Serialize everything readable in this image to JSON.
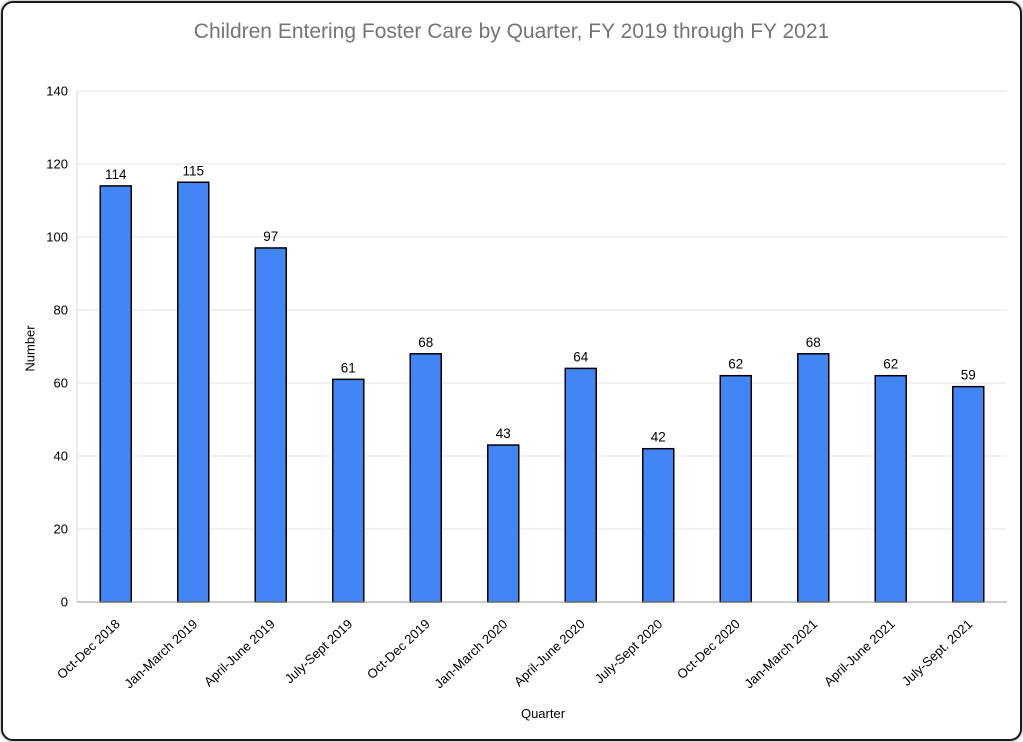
{
  "window": {
    "background": "#ffffff",
    "border_color": "#1c1c1c"
  },
  "chart_data": {
    "type": "bar",
    "title": "Children Entering Foster Care by Quarter, FY 2019 through FY 2021",
    "xlabel": "Quarter",
    "ylabel": "Number",
    "categories": [
      "Oct-Dec 2018",
      "Jan-March 2019",
      "April-June 2019",
      "July-Sept 2019",
      "Oct-Dec 2019",
      "Jan-March 2020",
      "April-June 2020",
      "July-Sept 2020",
      "Oct-Dec 2020",
      "Jan-March 2021",
      "April-June 2021",
      "July-Sept. 2021"
    ],
    "values": [
      114,
      115,
      97,
      61,
      68,
      43,
      64,
      42,
      62,
      68,
      62,
      59
    ],
    "ylim": [
      0,
      140
    ],
    "yticks": [
      0,
      20,
      40,
      60,
      80,
      100,
      120,
      140
    ],
    "grid": true,
    "legend_position": "none",
    "data_labels": true,
    "colors": {
      "bar_fill": "#4285f4",
      "bar_stroke": "#000000",
      "title": "#757575",
      "gridline": "#e6e6e6",
      "axis_line": "#d9d9d9",
      "baseline": "#999999",
      "tick_label": "#000000",
      "data_label": "#000000"
    }
  }
}
